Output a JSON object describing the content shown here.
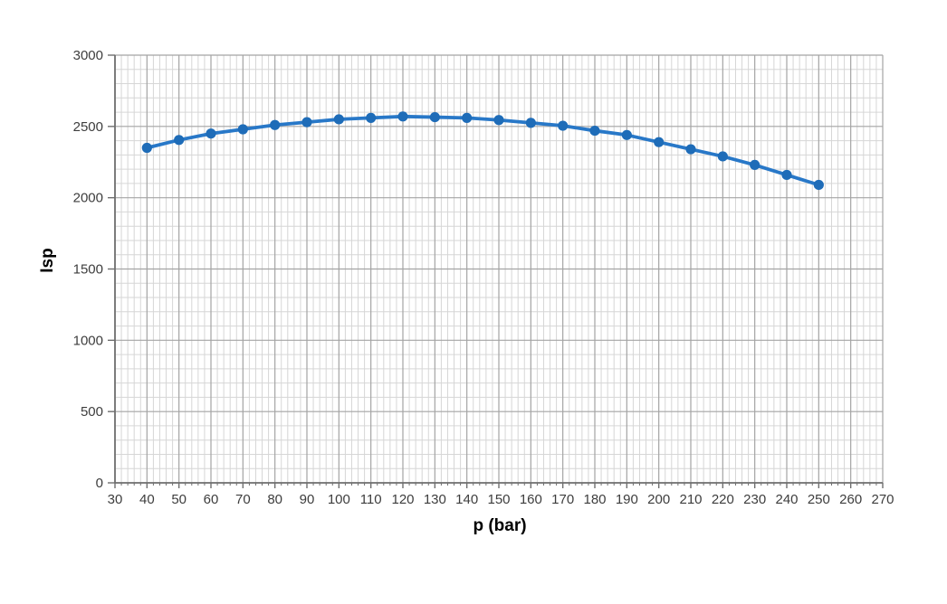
{
  "chart_data": {
    "type": "line",
    "title": "",
    "xlabel": "p (bar)",
    "ylabel": "Isp",
    "x": [
      40,
      50,
      60,
      70,
      80,
      90,
      100,
      110,
      120,
      130,
      140,
      150,
      160,
      170,
      180,
      190,
      200,
      210,
      220,
      230,
      240,
      250
    ],
    "series": [
      {
        "name": "Isp",
        "values": [
          2350,
          2405,
          2450,
          2480,
          2510,
          2530,
          2550,
          2560,
          2570,
          2565,
          2560,
          2545,
          2525,
          2505,
          2470,
          2440,
          2390,
          2340,
          2290,
          2230,
          2160,
          2090
        ]
      }
    ],
    "xlim": [
      30,
      270
    ],
    "ylim": [
      0,
      3000
    ],
    "x_tick_labels": [
      30,
      40,
      50,
      60,
      70,
      80,
      90,
      100,
      110,
      120,
      130,
      140,
      150,
      160,
      170,
      180,
      190,
      200,
      210,
      220,
      230,
      240,
      250,
      260,
      270
    ],
    "y_tick_labels": [
      0,
      500,
      1000,
      1500,
      2000,
      2500,
      3000
    ],
    "x_major_step": 10,
    "x_minor_step": 2,
    "y_major_step": 500,
    "y_minor_step": 100,
    "grid": "major+minor",
    "legend": "none",
    "marker": "circle",
    "colors": {
      "line": "#2878c8",
      "marker": "#1e6cb8",
      "grid_major": "#a4a4a4",
      "grid_minor": "#d6d6d6",
      "axis": "#6e6e6e",
      "tick_text": "#3d3d3d",
      "title_text": "#000000",
      "background": "#ffffff"
    }
  }
}
